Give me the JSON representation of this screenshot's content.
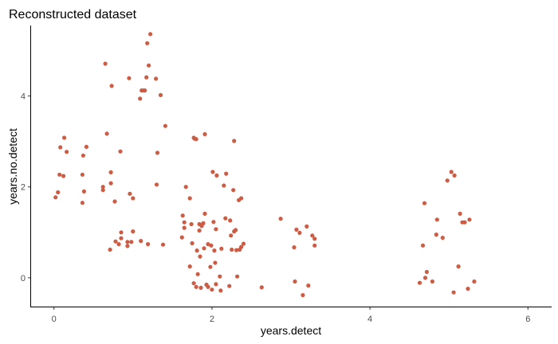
{
  "chart_data": {
    "type": "scatter",
    "title": "Reconstructed dataset",
    "xlabel": "years.detect",
    "ylabel": "years.no.detect",
    "xlim": [
      -0.3,
      6.3
    ],
    "ylim": [
      -0.65,
      5.55
    ],
    "xticks": [
      0,
      2,
      4,
      6
    ],
    "yticks": [
      0,
      2,
      4
    ],
    "grid": false,
    "point_color": "#cd5c45",
    "series": [
      {
        "points": [
          [
            0.02,
            1.77
          ],
          [
            0.05,
            1.88
          ],
          [
            0.07,
            2.27
          ],
          [
            0.08,
            2.87
          ],
          [
            0.12,
            2.24
          ],
          [
            0.13,
            3.08
          ],
          [
            0.16,
            2.77
          ],
          [
            0.36,
            1.65
          ],
          [
            0.36,
            2.27
          ],
          [
            0.37,
            2.69
          ],
          [
            0.38,
            1.9
          ],
          [
            0.41,
            2.88
          ],
          [
            0.62,
            1.93
          ],
          [
            0.62,
            2.0
          ],
          [
            0.65,
            4.71
          ],
          [
            0.67,
            3.17
          ],
          [
            0.72,
            2.32
          ],
          [
            0.72,
            2.08
          ],
          [
            0.73,
            4.22
          ],
          [
            0.71,
            0.62
          ],
          [
            0.77,
            1.68
          ],
          [
            0.78,
            0.8
          ],
          [
            0.82,
            0.74
          ],
          [
            0.84,
            2.78
          ],
          [
            0.85,
            1.0
          ],
          [
            0.85,
            0.87
          ],
          [
            0.93,
            0.79
          ],
          [
            0.93,
            0.7
          ],
          [
            0.95,
            4.39
          ],
          [
            0.96,
            1.85
          ],
          [
            0.98,
            0.79
          ],
          [
            1.0,
            1.02
          ],
          [
            1.0,
            1.75
          ],
          [
            1.09,
            3.94
          ],
          [
            1.1,
            0.81
          ],
          [
            1.11,
            4.12
          ],
          [
            1.13,
            4.12
          ],
          [
            1.15,
            4.12
          ],
          [
            1.17,
            4.41
          ],
          [
            1.18,
            5.16
          ],
          [
            1.19,
            0.74
          ],
          [
            1.2,
            4.67
          ],
          [
            1.22,
            5.36
          ],
          [
            1.29,
            4.38
          ],
          [
            1.3,
            2.05
          ],
          [
            1.31,
            2.75
          ],
          [
            1.35,
            4.02
          ],
          [
            1.38,
            0.73
          ],
          [
            1.41,
            3.34
          ],
          [
            1.62,
            0.89
          ],
          [
            1.63,
            1.37
          ],
          [
            1.65,
            1.1
          ],
          [
            1.65,
            1.22
          ],
          [
            1.67,
            2.0
          ],
          [
            1.72,
            1.75
          ],
          [
            1.72,
            0.25
          ],
          [
            1.74,
            1.18
          ],
          [
            1.75,
            0.76
          ],
          [
            1.77,
            3.08
          ],
          [
            1.77,
            -0.12
          ],
          [
            1.78,
            3.06
          ],
          [
            1.8,
            3.05
          ],
          [
            1.8,
            -0.2
          ],
          [
            1.81,
            0.6
          ],
          [
            1.82,
            0.08
          ],
          [
            1.84,
            1.04
          ],
          [
            1.84,
            1.18
          ],
          [
            1.85,
            0.47
          ],
          [
            1.86,
            -0.22
          ],
          [
            1.87,
            1.14
          ],
          [
            1.89,
            1.2
          ],
          [
            1.9,
            0.65
          ],
          [
            1.91,
            1.41
          ],
          [
            1.91,
            3.16
          ],
          [
            1.93,
            -0.15
          ],
          [
            1.95,
            0.74
          ],
          [
            1.95,
            -0.2
          ],
          [
            1.98,
            0.24
          ],
          [
            1.99,
            0.71
          ],
          [
            2.0,
            -0.26
          ],
          [
            2.01,
            2.33
          ],
          [
            2.02,
            1.23
          ],
          [
            2.03,
            0.6
          ],
          [
            2.04,
            0.33
          ],
          [
            2.05,
            1.07
          ],
          [
            2.05,
            -0.14
          ],
          [
            2.06,
            2.25
          ],
          [
            2.1,
            0.03
          ],
          [
            2.11,
            -0.28
          ],
          [
            2.12,
            0.64
          ],
          [
            2.15,
            2.03
          ],
          [
            2.17,
            1.31
          ],
          [
            2.18,
            2.29
          ],
          [
            2.22,
            -0.18
          ],
          [
            2.23,
            1.26
          ],
          [
            2.24,
            0.93
          ],
          [
            2.25,
            0.62
          ],
          [
            2.27,
            1.93
          ],
          [
            2.28,
            3.01
          ],
          [
            2.28,
            1.02
          ],
          [
            2.3,
            1.05
          ],
          [
            2.31,
            0.61
          ],
          [
            2.32,
            0.03
          ],
          [
            2.35,
            0.62
          ],
          [
            2.34,
            1.71
          ],
          [
            2.37,
            1.75
          ],
          [
            2.37,
            0.68
          ],
          [
            2.4,
            0.75
          ],
          [
            2.63,
            -0.21
          ],
          [
            2.87,
            1.3
          ],
          [
            3.04,
            0.67
          ],
          [
            3.05,
            -0.08
          ],
          [
            3.07,
            1.06
          ],
          [
            3.11,
            0.99
          ],
          [
            3.15,
            -0.38
          ],
          [
            3.2,
            1.13
          ],
          [
            3.22,
            -0.17
          ],
          [
            3.27,
            0.93
          ],
          [
            3.3,
            0.86
          ],
          [
            3.3,
            0.71
          ],
          [
            4.63,
            -0.11
          ],
          [
            4.67,
            0.71
          ],
          [
            4.69,
            1.64
          ],
          [
            4.7,
            0.0
          ],
          [
            4.72,
            0.13
          ],
          [
            4.79,
            -0.08
          ],
          [
            4.84,
            0.95
          ],
          [
            4.85,
            1.28
          ],
          [
            4.92,
            0.88
          ],
          [
            4.98,
            2.14
          ],
          [
            5.03,
            2.33
          ],
          [
            5.07,
            2.25
          ],
          [
            5.06,
            -0.32
          ],
          [
            5.12,
            0.25
          ],
          [
            5.14,
            1.41
          ],
          [
            5.17,
            1.22
          ],
          [
            5.2,
            1.22
          ],
          [
            5.24,
            -0.24
          ],
          [
            5.26,
            1.28
          ],
          [
            5.32,
            -0.08
          ]
        ]
      }
    ]
  }
}
